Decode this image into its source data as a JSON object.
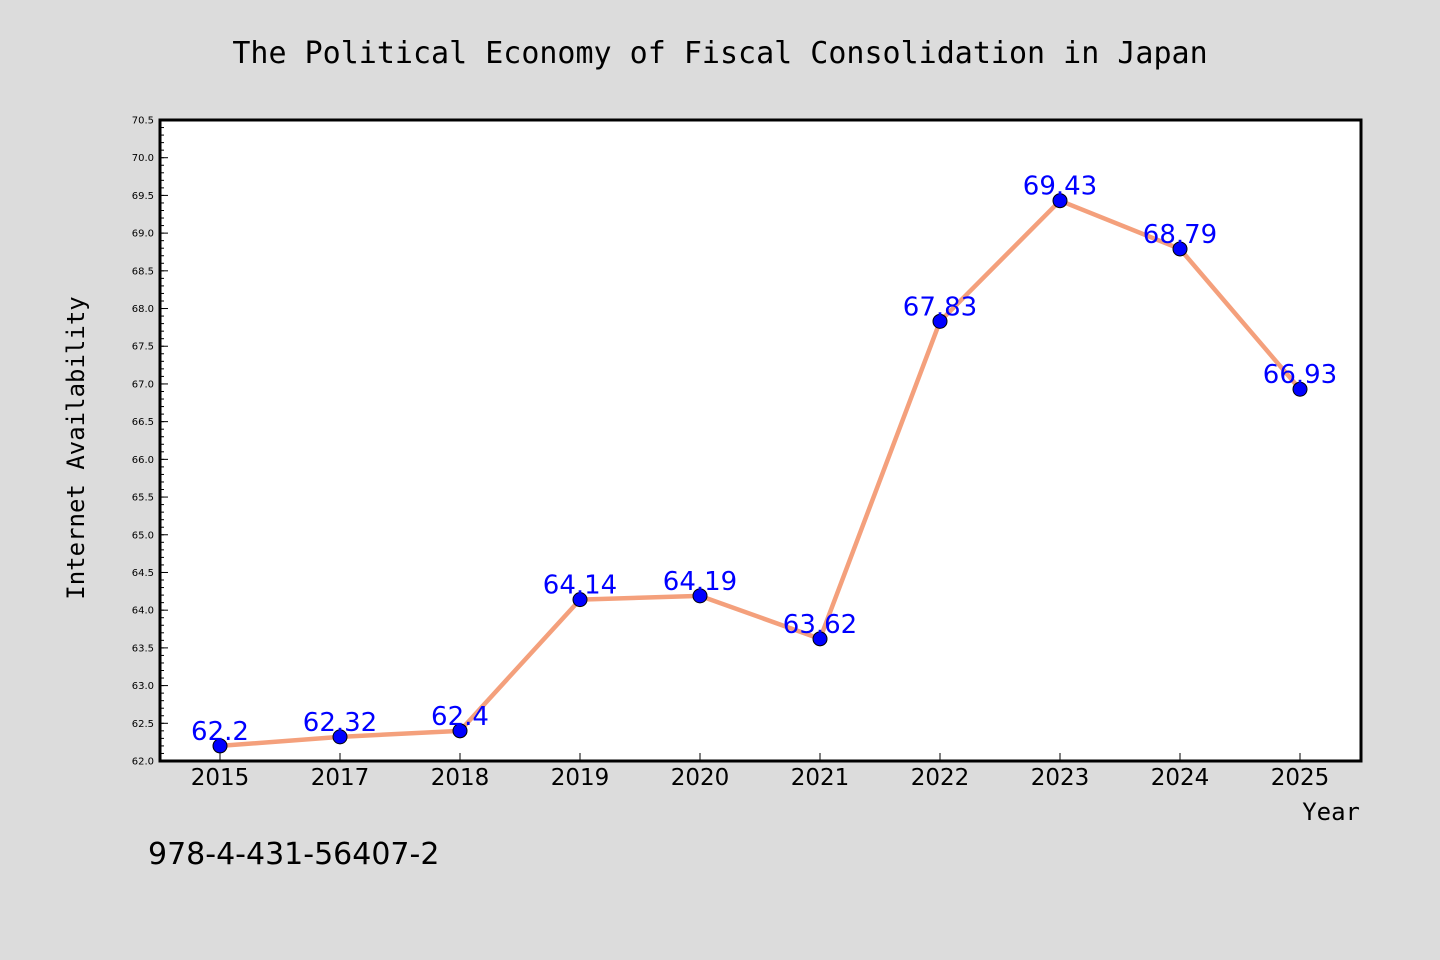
{
  "chart_data": {
    "type": "line",
    "title": "The Political Economy of Fiscal Consolidation in Japan",
    "xlabel": "Year",
    "ylabel": "Internet Availability",
    "categories": [
      "2015",
      "2017",
      "2018",
      "2019",
      "2020",
      "2021",
      "2022",
      "2023",
      "2024",
      "2025"
    ],
    "series": [
      {
        "values": [
          62.2,
          62.32,
          62.4,
          64.14,
          64.19,
          63.62,
          67.83,
          69.43,
          68.79,
          66.93
        ],
        "labels": [
          "62.2",
          "62.32",
          "62.4",
          "64.14",
          "64.19",
          "63.62",
          "67.83",
          "69.43",
          "68.79",
          "66.93"
        ],
        "line_color": "#f4a07c",
        "marker_color": "#0000ff"
      }
    ],
    "ylim": [
      62.0,
      70.5
    ],
    "yticks": [
      "62.0",
      "62.5",
      "63.0",
      "63.5",
      "64.0",
      "64.5",
      "65.0",
      "65.5",
      "66.0",
      "66.5",
      "67.0",
      "67.5",
      "68.0",
      "68.5",
      "69.0",
      "69.5",
      "70.0",
      "70.5"
    ],
    "grid": false,
    "legend": "none",
    "data_label_color": "#0000ff"
  },
  "footnote": "978-4-431-56407-2",
  "colors": {
    "background": "#dcdcdc",
    "plot_background": "#ffffff",
    "axis": "#000000"
  }
}
